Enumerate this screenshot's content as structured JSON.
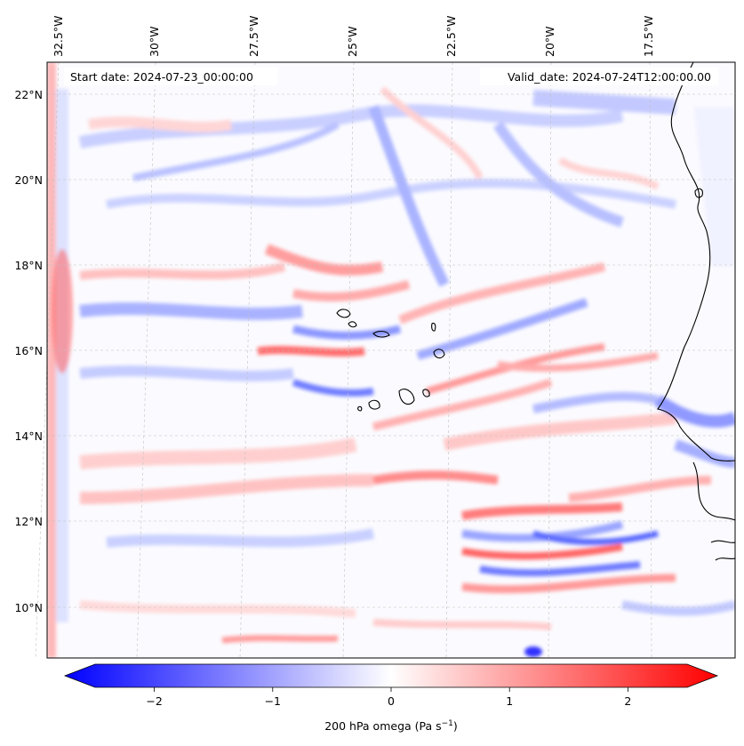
{
  "map": {
    "start_date": "Start date: 2024-07-23_00:00:00",
    "valid_date": "Valid_date: 2024-07-24T12:00:00.00",
    "lon_labels": [
      "32.5°W",
      "30°W",
      "27.5°W",
      "25°W",
      "22.5°W",
      "20°W",
      "17.5°W"
    ],
    "lat_labels": [
      "22°N",
      "20°N",
      "18°N",
      "16°N",
      "14°N",
      "12°N",
      "10°N"
    ],
    "extent": {
      "lon_min": -33.0,
      "lon_max": -15.0,
      "lat_min": 8.9,
      "lat_max": 22.8
    },
    "field": "200 hPa omega",
    "colors": {
      "negative": "#0000ff",
      "zero": "#ffffff",
      "positive": "#ff0000",
      "coast": "#000000",
      "grid": "#b0b0b0"
    }
  },
  "colorbar": {
    "label_main": "200 hPa omega (Pa s",
    "label_sup": "−1",
    "label_close": ")",
    "range": [
      -2.5,
      2.5
    ],
    "ticks": [
      "−2",
      "−1",
      "0",
      "1",
      "2"
    ],
    "tick_values": [
      -2,
      -1,
      0,
      1,
      2
    ],
    "extend": "both"
  }
}
